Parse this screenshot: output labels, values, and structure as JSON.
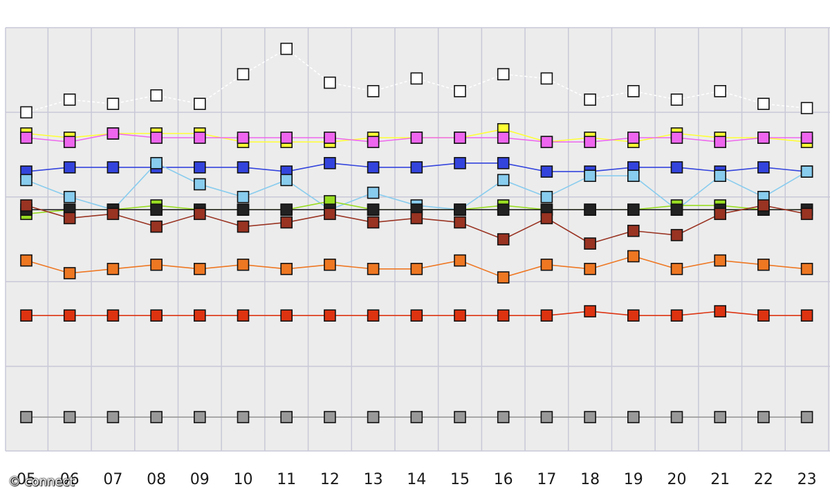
{
  "watermark": "© connect",
  "chart_data": {
    "type": "line",
    "title": "",
    "xlabel": "",
    "ylabel": "",
    "grid": true,
    "x_categories": [
      "05",
      "06",
      "07",
      "08",
      "09",
      "10",
      "11",
      "12",
      "13",
      "14",
      "15",
      "16",
      "17",
      "18",
      "19",
      "20",
      "21",
      "22",
      "23"
    ],
    "ylim": [
      0,
      100
    ],
    "series": [
      {
        "color": "#ffffff",
        "values": [
          80,
          83,
          82,
          84,
          82,
          89,
          95,
          87,
          85,
          88,
          85,
          89,
          88,
          83,
          85,
          83,
          85,
          82,
          81
        ]
      },
      {
        "color": "#ffff33",
        "values": [
          75,
          74,
          75,
          75,
          75,
          73,
          73,
          73,
          74,
          74,
          74,
          76,
          73,
          74,
          73,
          75,
          74,
          74,
          73
        ]
      },
      {
        "color": "#ee66ee",
        "values": [
          74,
          73,
          75,
          74,
          74,
          74,
          74,
          74,
          73,
          74,
          74,
          74,
          73,
          73,
          74,
          74,
          73,
          74,
          74
        ]
      },
      {
        "color": "#3344dd",
        "values": [
          66,
          67,
          67,
          67,
          67,
          67,
          66,
          68,
          67,
          67,
          68,
          68,
          66,
          66,
          67,
          67,
          66,
          67,
          66
        ]
      },
      {
        "color": "#88ccee",
        "values": [
          64,
          60,
          57,
          68,
          63,
          60,
          64,
          57,
          61,
          58,
          57,
          64,
          60,
          65,
          65,
          57,
          65,
          60,
          66
        ]
      },
      {
        "color": "#99dd22",
        "values": [
          56,
          57,
          57,
          58,
          57,
          57,
          57,
          59,
          57,
          57,
          57,
          58,
          57,
          57,
          57,
          58,
          58,
          57,
          57
        ]
      },
      {
        "color": "#222222",
        "values": [
          57,
          57,
          57,
          57,
          57,
          57,
          57,
          57,
          57,
          57,
          57,
          57,
          57,
          57,
          57,
          57,
          57,
          57,
          57
        ]
      },
      {
        "color": "#993322",
        "values": [
          58,
          55,
          56,
          53,
          56,
          53,
          54,
          56,
          54,
          55,
          54,
          50,
          55,
          49,
          52,
          51,
          56,
          58,
          56
        ]
      },
      {
        "color": "#ee7722",
        "values": [
          45,
          42,
          43,
          44,
          43,
          44,
          43,
          44,
          43,
          43,
          45,
          41,
          44,
          43,
          46,
          43,
          45,
          44,
          43
        ]
      },
      {
        "color": "#dd3311",
        "values": [
          32,
          32,
          32,
          32,
          32,
          32,
          32,
          32,
          32,
          32,
          32,
          32,
          32,
          33,
          32,
          32,
          33,
          32,
          32
        ]
      },
      {
        "color": "#999999",
        "values": [
          8,
          8,
          8,
          8,
          8,
          8,
          8,
          8,
          8,
          8,
          8,
          8,
          8,
          8,
          8,
          8,
          8,
          8,
          8
        ]
      }
    ]
  }
}
